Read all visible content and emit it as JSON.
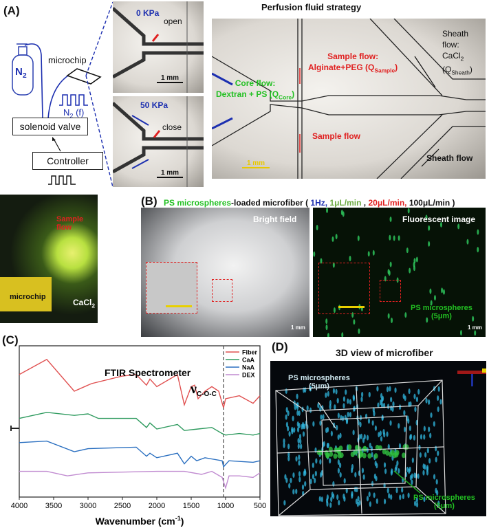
{
  "panelA": {
    "label": "(A)",
    "gas": "N",
    "gas_sub": "2",
    "microchip": "microchip",
    "pulse_gas": "N",
    "pulse_gas_sub": "2",
    "pulse_freq": " (f)",
    "solenoid": "solenoid valve",
    "controller": "Controller",
    "top_image": {
      "pressure": "0 KPa",
      "state": "open",
      "scale": "1 mm"
    },
    "bottom_image": {
      "pressure": "50 KPa",
      "state": "close",
      "scale": "1 mm"
    },
    "perfusion": {
      "title": "Perfusion fluid strategy",
      "sheath_title": "Sheath flow:",
      "sheath_body": "CaCl",
      "sheath_sub1": "2",
      "sheath_q": " (Q",
      "sheath_qsub": "Sheath",
      "sheath_end": ")",
      "sample_title": "Sample flow:",
      "sample_body": "Alginate+PEG (Q",
      "sample_qsub": "Sample",
      "sample_end": ")",
      "core_title": "Core flow:",
      "core_body": "Dextran + PS (Q",
      "core_qsub": "Core",
      "core_end": ")",
      "sample_flow": "Sample flow",
      "sheath_flow": "Sheath flow",
      "scale": "1 mm"
    }
  },
  "photo": {
    "sample_flow": "Sample flow",
    "microchip": "microchip",
    "cacl": "CaCl",
    "cacl_sub": "2"
  },
  "panelB": {
    "label": "(B)",
    "title_ps": "PS microspheres",
    "title_rest": "-loaded microfiber ( ",
    "hz": "1Hz,",
    "q1": " 1μL/min",
    "sep": " , ",
    "q2": "20μL/min,",
    "q3": " 100μL/min )",
    "bright": "Bright field",
    "fluor": "Fluorescent  image",
    "ps_label": "PS microspheres",
    "ps_size": "(5μm)",
    "scale": "1 mm"
  },
  "panelC": {
    "label": "(C)"
  },
  "panelD": {
    "label": "(D)",
    "title": "3D view of microfiber",
    "ps1": "PS microspheres",
    "ps1_size": "(5μm)",
    "ps2": "PS microspheres",
    "ps2_size": "(5μm)"
  },
  "colors": {
    "fiber": "#e05050",
    "caa": "#2e9a5e",
    "naa": "#2a6fc0",
    "dex": "#c08ad0",
    "blue_text": "#1a2fb0",
    "red_text": "#e02020",
    "green_text": "#22c022"
  },
  "chart_data": {
    "type": "line",
    "title": "FTIR Spectrometer",
    "annotation": "ν",
    "annotation_sub": "C-O-C",
    "xlabel": "Wavenumber (cm",
    "xlabel_sup": "-1",
    "xlabel_end": ")",
    "xlim": [
      4000,
      500
    ],
    "ylim": [
      0,
      100
    ],
    "xticks": [
      "4000",
      "3500",
      "3000",
      "2500",
      "2000",
      "1500",
      "1000",
      "500"
    ],
    "reference_line_x": 1030,
    "legend_placement": "top-right",
    "series": [
      {
        "name": "Fiber",
        "points": [
          [
            4000,
            81
          ],
          [
            3600,
            91
          ],
          [
            3200,
            70
          ],
          [
            2950,
            75
          ],
          [
            2500,
            80
          ],
          [
            2300,
            81
          ],
          [
            2150,
            74
          ],
          [
            2100,
            78
          ],
          [
            2000,
            73
          ],
          [
            1700,
            81
          ],
          [
            1600,
            61
          ],
          [
            1500,
            73
          ],
          [
            1450,
            74
          ],
          [
            1400,
            65
          ],
          [
            1300,
            70
          ],
          [
            1200,
            73
          ],
          [
            1100,
            70
          ],
          [
            1030,
            59
          ],
          [
            1000,
            65
          ],
          [
            800,
            67
          ],
          [
            600,
            62
          ],
          [
            500,
            67
          ]
        ]
      },
      {
        "name": "CaA",
        "points": [
          [
            4000,
            52
          ],
          [
            3600,
            56
          ],
          [
            3200,
            54
          ],
          [
            3000,
            55
          ],
          [
            2850,
            52
          ],
          [
            2300,
            52
          ],
          [
            2150,
            46
          ],
          [
            2100,
            49
          ],
          [
            2000,
            45
          ],
          [
            1700,
            48
          ],
          [
            1600,
            44
          ],
          [
            1400,
            45
          ],
          [
            1200,
            46
          ],
          [
            1050,
            42
          ],
          [
            1000,
            41
          ],
          [
            800,
            42
          ],
          [
            600,
            41
          ],
          [
            500,
            42
          ]
        ]
      },
      {
        "name": "NaA",
        "points": [
          [
            4000,
            36
          ],
          [
            3600,
            37
          ],
          [
            3200,
            30
          ],
          [
            3000,
            32
          ],
          [
            2300,
            33
          ],
          [
            2150,
            27
          ],
          [
            2100,
            29
          ],
          [
            2000,
            26
          ],
          [
            1700,
            29
          ],
          [
            1600,
            22
          ],
          [
            1500,
            27
          ],
          [
            1420,
            24
          ],
          [
            1300,
            26
          ],
          [
            1050,
            24
          ],
          [
            1030,
            20
          ],
          [
            950,
            24
          ],
          [
            600,
            23
          ],
          [
            500,
            24
          ]
        ]
      },
      {
        "name": "DEX",
        "points": [
          [
            4000,
            17
          ],
          [
            3600,
            17
          ],
          [
            3300,
            14
          ],
          [
            3000,
            16
          ],
          [
            2000,
            17
          ],
          [
            1600,
            17
          ],
          [
            1350,
            15
          ],
          [
            1200,
            17
          ],
          [
            1050,
            13
          ],
          [
            1000,
            6
          ],
          [
            950,
            14
          ],
          [
            800,
            14
          ],
          [
            600,
            13
          ],
          [
            500,
            16
          ]
        ]
      }
    ]
  }
}
